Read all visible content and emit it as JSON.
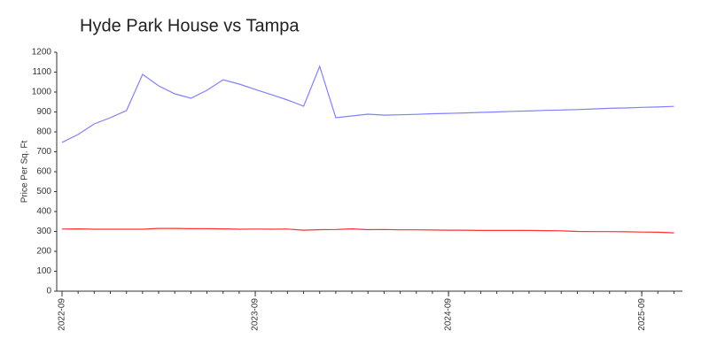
{
  "chart_data": {
    "type": "line",
    "title": "Hyde Park House vs Tampa",
    "y_label": "Price Per Sq. Ft",
    "x": [
      "2022-09",
      "2022-10",
      "2022-11",
      "2022-12",
      "2023-01",
      "2023-02",
      "2023-03",
      "2023-04",
      "2023-05",
      "2023-06",
      "2023-07",
      "2023-08",
      "2023-09",
      "2023-10",
      "2023-11",
      "2023-12",
      "2024-01",
      "2024-02",
      "2024-03",
      "2024-04",
      "2024-05",
      "2024-06",
      "2024-07",
      "2024-08",
      "2024-09",
      "2024-10",
      "2024-11",
      "2024-12",
      "2025-01",
      "2025-02",
      "2025-03",
      "2025-04",
      "2025-05",
      "2025-06",
      "2025-07",
      "2025-08",
      "2025-09",
      "2025-10",
      "2025-11"
    ],
    "xticks": [
      "2022-09",
      "2023-09",
      "2024-09",
      "2025-09"
    ],
    "series": [
      {
        "color": "#8080ff",
        "values": [
          747,
          787,
          840,
          871,
          907,
          1089,
          1031,
          991,
          969,
          1009,
          1062,
          1040,
          1013,
          987,
          960,
          929,
          1129,
          871,
          880,
          889,
          884,
          886,
          888,
          891,
          893,
          895,
          898,
          900,
          903,
          905,
          908,
          910,
          912,
          915,
          918,
          920,
          923,
          925,
          928
        ]
      },
      {
        "color": "#ff3030",
        "values": [
          312,
          313,
          311,
          311,
          311,
          311,
          315,
          315,
          314,
          314,
          313,
          311,
          312,
          311,
          312,
          306,
          309,
          310,
          313,
          309,
          310,
          308,
          308,
          307,
          306,
          306,
          305,
          305,
          305,
          305,
          304,
          303,
          300,
          299,
          299,
          298,
          297,
          296,
          293
        ]
      }
    ],
    "ylim": [
      0,
      1200
    ],
    "yticks": [
      0,
      100,
      200,
      300,
      400,
      500,
      600,
      700,
      800,
      900,
      1000,
      1100,
      1200
    ],
    "grid": false
  }
}
